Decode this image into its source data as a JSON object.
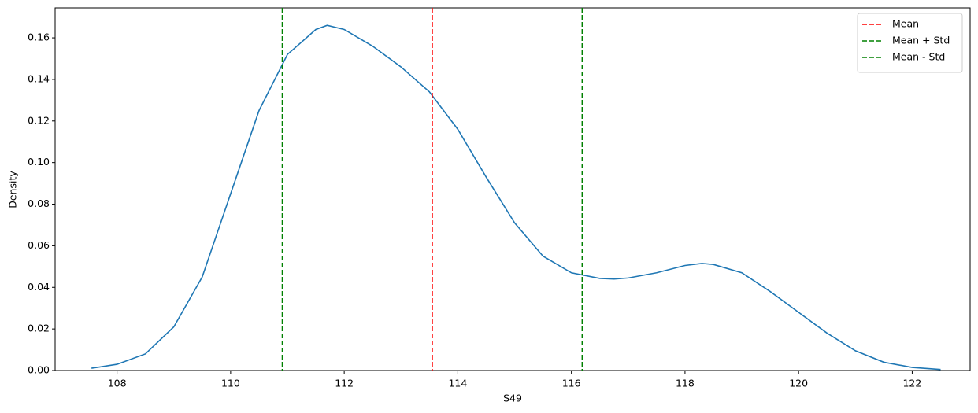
{
  "chart_data": {
    "type": "line",
    "xlabel": "S49",
    "ylabel": "Density",
    "x": [
      107.55,
      108,
      108.5,
      109,
      109.5,
      110,
      110.5,
      111,
      111.5,
      111.7,
      112,
      112.5,
      113,
      113.5,
      114,
      114.5,
      115,
      115.5,
      116,
      116.5,
      116.75,
      117,
      117.5,
      118,
      118.3,
      118.5,
      119,
      119.5,
      120,
      120.5,
      121,
      121.5,
      122,
      122.5
    ],
    "values": [
      0.0011,
      0.003,
      0.008,
      0.021,
      0.045,
      0.085,
      0.125,
      0.152,
      0.164,
      0.166,
      0.164,
      0.156,
      0.146,
      0.134,
      0.116,
      0.093,
      0.071,
      0.055,
      0.047,
      0.0443,
      0.044,
      0.0445,
      0.047,
      0.0505,
      0.0515,
      0.051,
      0.047,
      0.038,
      0.028,
      0.018,
      0.0095,
      0.004,
      0.0015,
      0.0005
    ],
    "color": "#1f77b4",
    "vlines": [
      {
        "name": "Mean",
        "color": "#ff0000",
        "x": 113.55
      },
      {
        "name": "Mean + Std",
        "color": "#008000",
        "x": 116.19
      },
      {
        "name": "Mean - Std",
        "color": "#008000",
        "x": 110.91
      }
    ],
    "xlim": [
      106.91,
      123.02
    ],
    "ylim": [
      0,
      0.1744
    ],
    "xticks": [
      108,
      110,
      112,
      114,
      116,
      118,
      120,
      122
    ],
    "yticks": [
      {
        "value": 0,
        "label": "0.00"
      },
      {
        "value": 0.02,
        "label": "0.02"
      },
      {
        "value": 0.04,
        "label": "0.04"
      },
      {
        "value": 0.06,
        "label": "0.06"
      },
      {
        "value": 0.08,
        "label": "0.08"
      },
      {
        "value": 0.1,
        "label": "0.10"
      },
      {
        "value": 0.12,
        "label": "0.12"
      },
      {
        "value": 0.14,
        "label": "0.14"
      },
      {
        "value": 0.16,
        "label": "0.16"
      }
    ],
    "legend": "upper right"
  }
}
